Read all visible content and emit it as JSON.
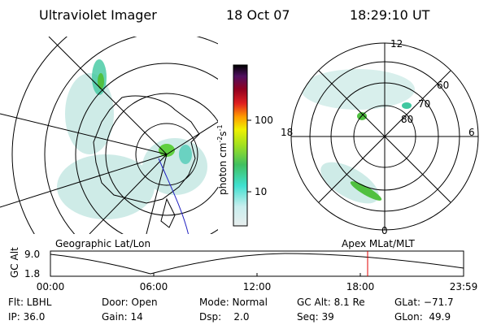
{
  "header": {
    "instrument": "Ultraviolet Imager",
    "date": "18 Oct 07",
    "time": "18:29:10 UT"
  },
  "colorbar": {
    "label": "photon cm",
    "exp1": "-2",
    "unit2": "s",
    "exp2": "-1",
    "ticks": [
      "100",
      "10"
    ]
  },
  "polar": {
    "mlt_labels": [
      "12",
      "18",
      "6",
      "0"
    ],
    "mlat_labels": [
      "60",
      "70",
      "80"
    ]
  },
  "altitude": {
    "left_title": "Geographic Lat/Lon",
    "right_title": "Apex MLat/MLT",
    "axis_label": "GC Alt",
    "y_labels": [
      "9.0",
      "1.8"
    ],
    "time_labels": [
      "00:00",
      "06:00",
      "12:00",
      "18:00",
      "23:59"
    ]
  },
  "info": {
    "rows": [
      [
        "Flt: LBHL",
        "Door: Open",
        "Mode: Normal",
        "GC Alt: 8.1 Re",
        "GLat: −71.7"
      ],
      [
        "IP: 36.0",
        "Gain: 14",
        "Dsp:    2.0",
        "Seq: 39",
        "GLon:  49.9"
      ]
    ]
  }
}
